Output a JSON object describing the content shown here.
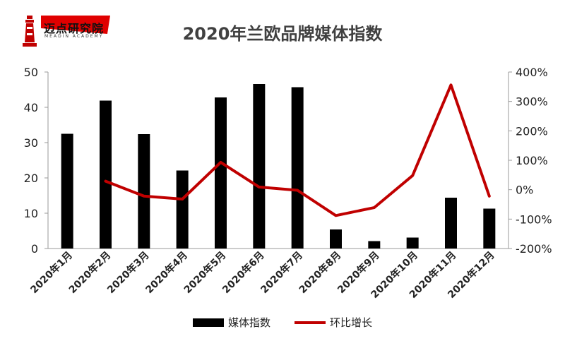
{
  "logo": {
    "name": "迈点研究院",
    "sub": "MEADIN ACADEMY"
  },
  "chart_data": {
    "type": "bar",
    "title": "2020年兰欧品牌媒体指数",
    "categories": [
      "2020年1月",
      "2020年2月",
      "2020年3月",
      "2020年4月",
      "2020年5月",
      "2020年6月",
      "2020年7月",
      "2020年8月",
      "2020年9月",
      "2020年10月",
      "2020年11月",
      "2020年12月"
    ],
    "series": [
      {
        "name": "媒体指数",
        "type": "bar",
        "axis": "left",
        "color": "#000000",
        "values": [
          32.5,
          41.9,
          32.4,
          22.1,
          42.8,
          46.6,
          45.7,
          5.4,
          2.1,
          3.1,
          14.4,
          11.3
        ]
      },
      {
        "name": "环比增长",
        "type": "line",
        "axis": "right",
        "color": "#c00000",
        "values": [
          null,
          29,
          -22,
          -32,
          93,
          9,
          -2,
          -88,
          -61,
          48,
          356,
          -22
        ]
      }
    ],
    "y_left": {
      "min": 0,
      "max": 50,
      "ticks": [
        "0",
        "10",
        "20",
        "30",
        "40",
        "50"
      ]
    },
    "y_right": {
      "min": -200,
      "max": 400,
      "ticks": [
        "-200%",
        "-100%",
        "0%",
        "100%",
        "200%",
        "300%",
        "400%"
      ]
    },
    "grid": false,
    "legend_position": "bottom"
  }
}
